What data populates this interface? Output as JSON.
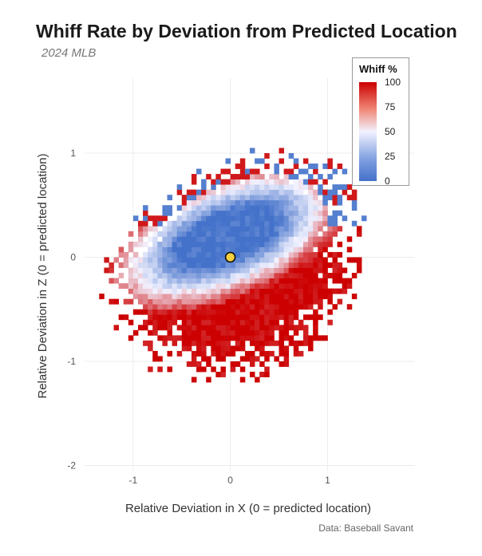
{
  "chart_data": {
    "type": "heatmap",
    "title": "Whiff Rate by Deviation from Predicted Location",
    "subtitle": "2024 MLB",
    "xlabel": "Relative Deviation in X (0 = predicted location)",
    "ylabel": "Relative Deviation in Z (0 = predicted location)",
    "caption": "Data: Baseball Savant",
    "xlim": [
      -1.5,
      1.9
    ],
    "ylim": [
      -2.05,
      1.72
    ],
    "xticks": [
      -1,
      0,
      1
    ],
    "yticks": [
      -2,
      -1,
      0,
      1
    ],
    "grid": true,
    "legend": {
      "title": "Whiff %",
      "placement": "top-right",
      "ticks": [
        0,
        25,
        50,
        75,
        100
      ],
      "colors": [
        "#4472ca",
        "#f2f2ff",
        "#cc0000"
      ]
    },
    "marker": {
      "x": 0,
      "y": 0,
      "color": "#f4d03f"
    },
    "description_of_values": {
      "low_whiff_region_center": [
        0,
        0.2
      ],
      "high_whiff_region": "below and around the central ellipse",
      "cell_size": 0.05
    }
  }
}
